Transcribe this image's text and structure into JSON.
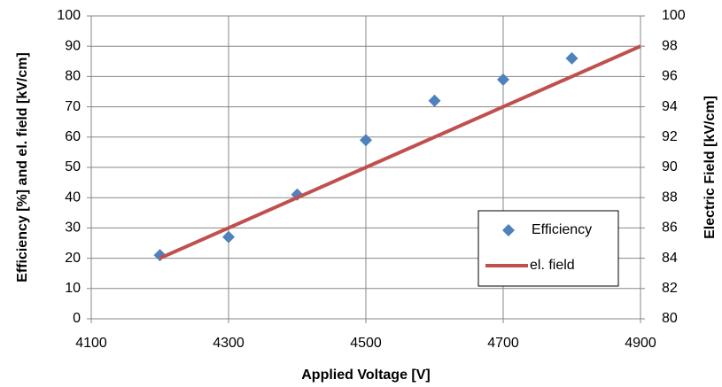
{
  "chart_data": {
    "type": "scatter",
    "x_label": "Applied Voltage [V]",
    "y_label": "Efficiency [%] and el. field [kV/cm]",
    "y2_label": "Electric Field [kV/cm]",
    "x": [
      4200,
      4300,
      4400,
      4500,
      4600,
      4700,
      4800,
      4900
    ],
    "series": [
      {
        "name": "Efficiency",
        "color": "#4f81bd",
        "marker": "diamond",
        "values": [
          21,
          27,
          41,
          59,
          72,
          79,
          86,
          null
        ]
      },
      {
        "name": "el. field",
        "color": "#c0504d",
        "marker": "line",
        "axis": "y2",
        "values": [
          84,
          86,
          88,
          90,
          92,
          94,
          96,
          98
        ]
      }
    ],
    "xlim": [
      4100,
      4900
    ],
    "xticks": [
      4100,
      4300,
      4500,
      4700,
      4900
    ],
    "ylim": [
      0,
      100
    ],
    "yticks": [
      0,
      10,
      20,
      30,
      40,
      50,
      60,
      70,
      80,
      90,
      100
    ],
    "y2lim": [
      80,
      100
    ],
    "y2ticks": [
      80,
      82,
      84,
      86,
      88,
      90,
      92,
      94,
      96,
      98,
      100
    ],
    "grid": true,
    "legend": "lower-right"
  }
}
